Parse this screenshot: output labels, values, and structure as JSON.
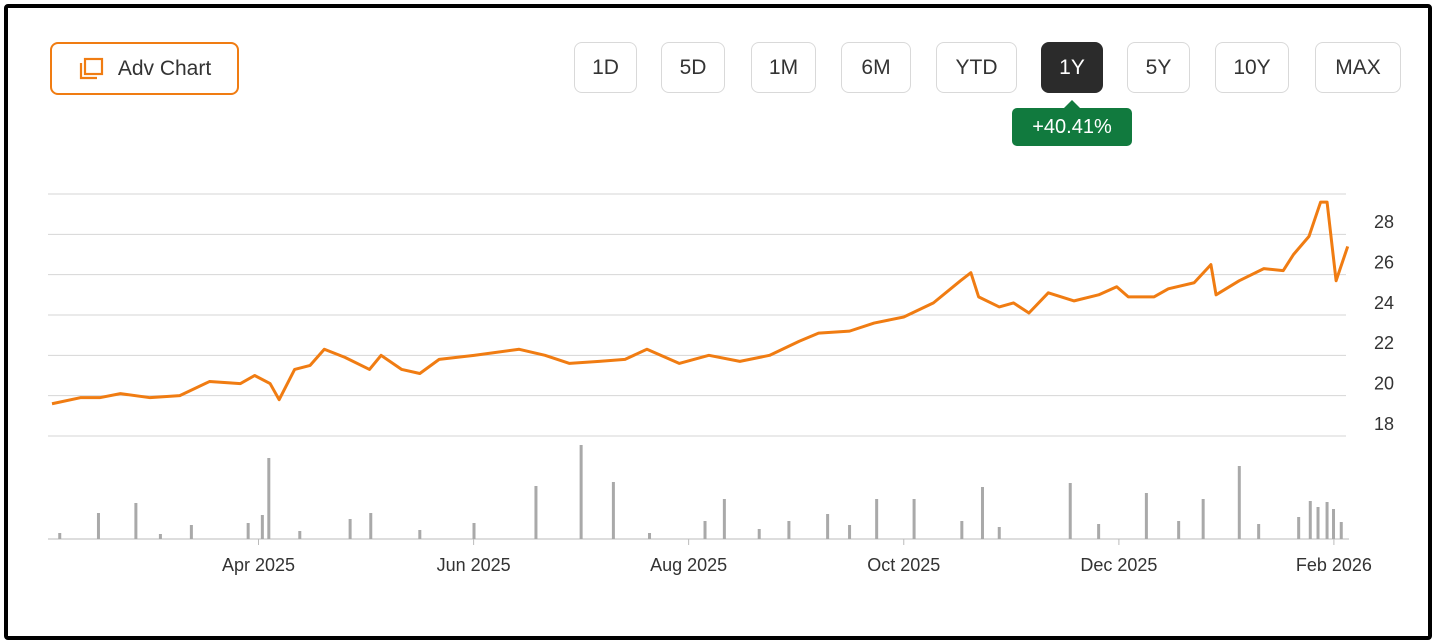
{
  "toolbar": {
    "adv_chart": "Adv Chart",
    "ranges": [
      "1D",
      "5D",
      "1M",
      "6M",
      "YTD",
      "1Y",
      "5Y",
      "10Y",
      "MAX"
    ],
    "active": "1Y",
    "change": "+40.41%"
  },
  "chart_data": {
    "type": "line",
    "xlim": [
      2025.09,
      2026.095
    ],
    "xticks": [
      {
        "value": 2025.25,
        "label": "Apr 2025"
      },
      {
        "value": 2025.4167,
        "label": "Jun 2025"
      },
      {
        "value": 2025.5833,
        "label": "Aug 2025"
      },
      {
        "value": 2025.75,
        "label": "Oct 2025"
      },
      {
        "value": 2025.9167,
        "label": "Dec 2025"
      },
      {
        "value": 2026.0833,
        "label": "Feb 2026"
      }
    ],
    "ylim": [
      18,
      30
    ],
    "yticks": [
      18,
      20,
      22,
      24,
      26,
      28
    ],
    "grid": true,
    "series": [
      {
        "color": "#f07c12",
        "x": [
          2025.09,
          2025.112,
          2025.127,
          2025.143,
          2025.166,
          2025.189,
          2025.212,
          2025.236,
          2025.247,
          2025.259,
          2025.266,
          2025.278,
          2025.29,
          2025.301,
          2025.317,
          2025.336,
          2025.345,
          2025.361,
          2025.375,
          2025.39,
          2025.417,
          2025.452,
          2025.472,
          2025.491,
          2025.514,
          2025.534,
          2025.551,
          2025.576,
          2025.599,
          2025.623,
          2025.646,
          2025.669,
          2025.684,
          2025.708,
          2025.727,
          2025.75,
          2025.773,
          2025.794,
          2025.802,
          2025.808,
          2025.824,
          2025.835,
          2025.847,
          2025.862,
          2025.882,
          2025.901,
          2025.915,
          2025.924,
          2025.944,
          2025.955,
          2025.975,
          2025.988,
          2025.992,
          2026.01,
          2026.029,
          2026.044,
          2026.052,
          2026.064,
          2026.073,
          2026.078,
          2026.085,
          2026.094
        ],
        "values": [
          19.6,
          19.9,
          19.9,
          20.1,
          19.9,
          20.0,
          20.7,
          20.6,
          21.0,
          20.6,
          19.8,
          21.3,
          21.5,
          22.3,
          21.9,
          21.3,
          22.0,
          21.3,
          21.1,
          21.8,
          22.0,
          22.3,
          22.0,
          21.6,
          21.7,
          21.8,
          22.3,
          21.6,
          22.0,
          21.7,
          22.0,
          22.7,
          23.1,
          23.2,
          23.6,
          23.9,
          24.6,
          25.7,
          26.1,
          24.9,
          24.4,
          24.6,
          24.1,
          25.1,
          24.7,
          25.0,
          25.4,
          24.9,
          24.9,
          25.3,
          25.6,
          26.5,
          25.0,
          25.7,
          26.3,
          26.2,
          27.0,
          27.9,
          29.6,
          29.6,
          25.7,
          27.4
        ]
      }
    ],
    "volume": {
      "color": "#a9a9a9",
      "ylim": [
        0,
        100
      ],
      "x": [
        2025.096,
        2025.126,
        2025.155,
        2025.174,
        2025.198,
        2025.242,
        2025.253,
        2025.258,
        2025.282,
        2025.321,
        2025.337,
        2025.375,
        2025.417,
        2025.465,
        2025.5,
        2025.525,
        2025.553,
        2025.596,
        2025.611,
        2025.638,
        2025.661,
        2025.691,
        2025.708,
        2025.729,
        2025.758,
        2025.795,
        2025.811,
        2025.824,
        2025.879,
        2025.901,
        2025.938,
        2025.963,
        2025.982,
        2026.01,
        2026.025,
        2026.056,
        2026.065,
        2026.071,
        2026.078,
        2026.083,
        2026.089
      ],
      "values": [
        6,
        26,
        36,
        5,
        14,
        16,
        24,
        81,
        8,
        20,
        26,
        9,
        16,
        53,
        94,
        57,
        6,
        18,
        40,
        10,
        18,
        25,
        14,
        40,
        40,
        18,
        52,
        12,
        56,
        15,
        46,
        18,
        40,
        73,
        15,
        22,
        38,
        32,
        37,
        30,
        17
      ]
    }
  }
}
